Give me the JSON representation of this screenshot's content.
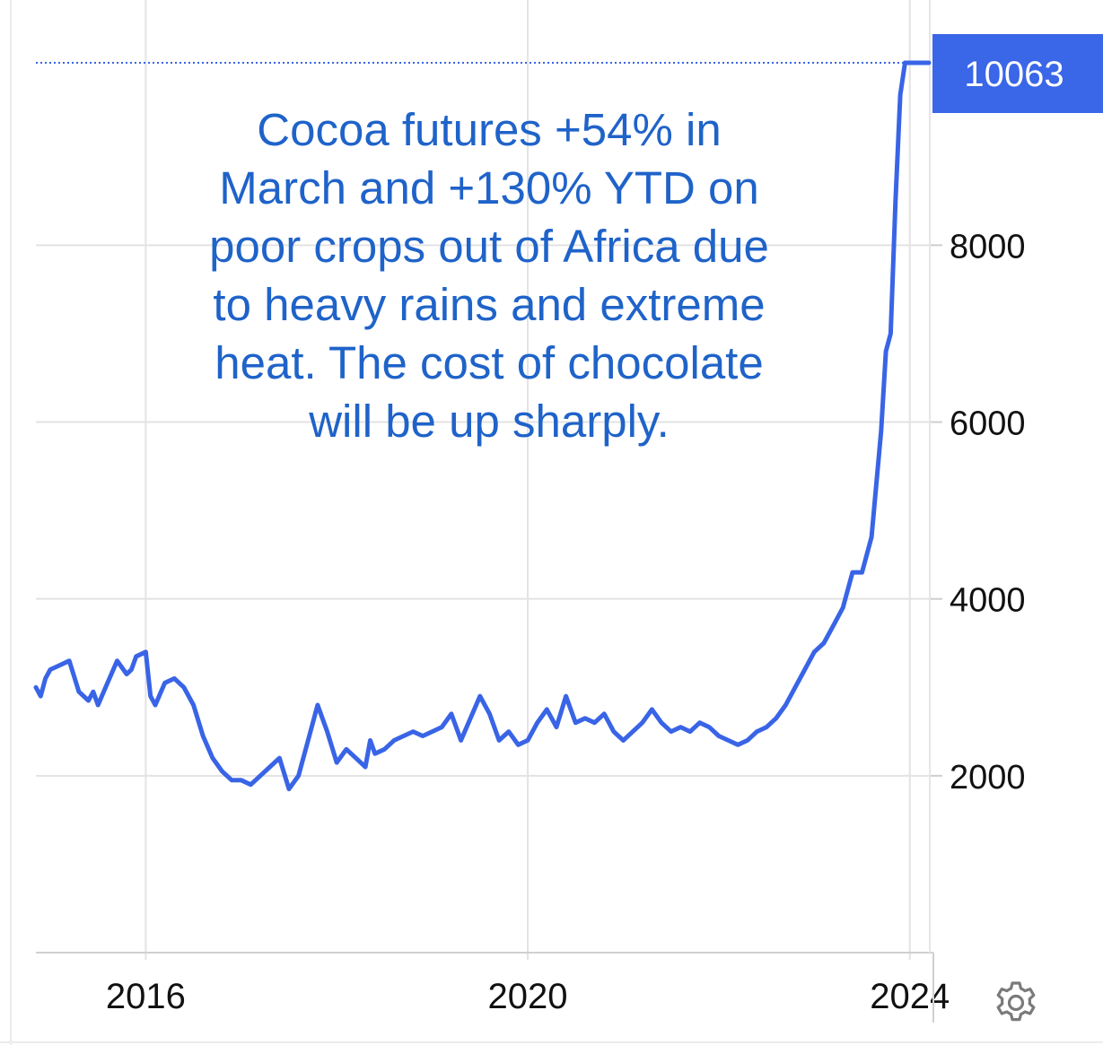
{
  "chart_data": {
    "type": "line",
    "title": "",
    "xlabel": "",
    "ylabel": "",
    "xlim": [
      2014.85,
      2024.2
    ],
    "ylim": [
      0,
      10063
    ],
    "grid": true,
    "x_ticks": [
      2016,
      2020,
      2024
    ],
    "x_tick_labels": [
      "2016",
      "2020",
      "2024"
    ],
    "y_ticks": [
      2000,
      4000,
      6000,
      8000
    ],
    "y_tick_labels": [
      "2000",
      "4000",
      "6000",
      "8000"
    ],
    "last_value_label": "10063",
    "annotation": "Cocoa futures +54% in\nMarch and +130% YTD on\npoor crops out of Africa due\nto heavy rains and extreme\nheat. The cost of chocolate\nwill be up sharply.",
    "colors": {
      "line": "#3964e6",
      "label_bg": "#3a66e8",
      "annotation_text": "#1f63c9",
      "grid": "#e3e3e3"
    },
    "series": [
      {
        "x": [
          2014.85,
          2014.9,
          2014.95,
          2015.0,
          2015.1,
          2015.2,
          2015.3,
          2015.4,
          2015.45,
          2015.5,
          2015.6,
          2015.7,
          2015.8,
          2015.85,
          2015.9,
          2016.0,
          2016.05,
          2016.1,
          2016.2,
          2016.3,
          2016.4,
          2016.5,
          2016.6,
          2016.7,
          2016.8,
          2016.9,
          2017.0,
          2017.1,
          2017.2,
          2017.3,
          2017.4,
          2017.5,
          2017.6,
          2017.7,
          2017.8,
          2017.9,
          2018.0,
          2018.1,
          2018.2,
          2018.3,
          2018.35,
          2018.4,
          2018.5,
          2018.6,
          2018.7,
          2018.8,
          2018.9,
          2019.0,
          2019.1,
          2019.2,
          2019.3,
          2019.4,
          2019.5,
          2019.6,
          2019.7,
          2019.8,
          2019.9,
          2020.0,
          2020.1,
          2020.2,
          2020.3,
          2020.4,
          2020.5,
          2020.6,
          2020.7,
          2020.8,
          2020.9,
          2020.95,
          2021.0,
          2021.1,
          2021.2,
          2021.3,
          2021.4,
          2021.5,
          2021.6,
          2021.7,
          2021.8,
          2021.9,
          2022.0,
          2022.1,
          2022.2,
          2022.3,
          2022.4,
          2022.5,
          2022.6,
          2022.7,
          2022.8,
          2022.9,
          2023.0,
          2023.1,
          2023.2,
          2023.3,
          2023.4,
          2023.5,
          2023.6,
          2023.7,
          2023.75,
          2023.8,
          2023.85,
          2023.9,
          2023.95,
          2024.0,
          2024.05,
          2024.08,
          2024.1,
          2024.12,
          2024.14,
          2024.16,
          2024.18,
          2024.2
        ],
        "y": [
          3000,
          2900,
          3100,
          3200,
          3250,
          3300,
          2950,
          2850,
          2950,
          2800,
          3050,
          3300,
          3150,
          3200,
          3350,
          3400,
          2900,
          2800,
          3050,
          3100,
          3000,
          2800,
          2450,
          2200,
          2050,
          1950,
          1950,
          1900,
          2000,
          2100,
          2200,
          1850,
          2000,
          2400,
          2800,
          2500,
          2150,
          2300,
          2200,
          2100,
          2400,
          2250,
          2300,
          2400,
          2450,
          2500,
          2450,
          2500,
          2550,
          2700,
          2400,
          2650,
          2900,
          2700,
          2400,
          2500,
          2350,
          2400,
          2600,
          2750,
          2550,
          2900,
          2600,
          2650,
          2600,
          2700,
          2500,
          2450,
          2400,
          2500,
          2600,
          2750,
          2600,
          2500,
          2550,
          2500,
          2600,
          2550,
          2450,
          2400,
          2350,
          2400,
          2500,
          2550,
          2650,
          2800,
          3000,
          3200,
          3400,
          3500,
          3700,
          3900,
          4300,
          4300,
          4700,
          5900,
          6800,
          7000,
          8500,
          9700,
          10063,
          10063,
          10063,
          10063,
          10063,
          10063,
          10063,
          10063,
          10063,
          10063
        ]
      }
    ]
  }
}
